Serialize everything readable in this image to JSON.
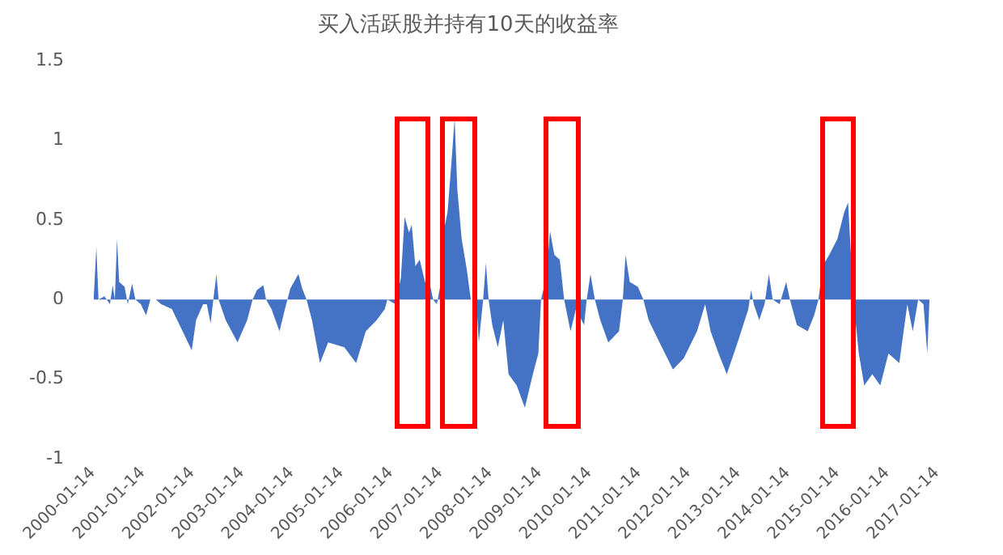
{
  "chart_data": {
    "type": "area",
    "title": "买入活跃股并持有10天的收益率",
    "x": [
      "2000-01-19",
      "2000-02-08",
      "2000-02-24",
      "2000-04-08",
      "2000-05-18",
      "2000-06-07",
      "2000-06-23",
      "2000-07-09",
      "2000-07-25",
      "2000-09-03",
      "2000-09-26",
      "2000-10-28",
      "2000-11-21",
      "2000-12-31",
      "2001-02-08",
      "2001-03-12",
      "2001-04-21",
      "2001-05-30",
      "2001-08-17",
      "2001-11-04",
      "2002-01-10",
      "2002-02-11",
      "2002-04-04",
      "2002-05-01",
      "2002-05-29",
      "2002-06-18",
      "2002-07-11",
      "2002-07-27",
      "2002-09-17",
      "2002-12-13",
      "2003-02-22",
      "2003-04-03",
      "2003-05-05",
      "2003-06-21",
      "2003-07-11",
      "2003-08-20",
      "2003-10-18",
      "2003-11-27",
      "2004-01-06",
      "2004-03-05",
      "2004-04-02",
      "2004-05-04",
      "2004-06-13",
      "2004-08-11",
      "2004-10-10",
      "2005-02-06",
      "2005-05-04",
      "2005-07-14",
      "2005-10-02",
      "2005-12-01",
      "2005-12-20",
      "2006-02-18",
      "2006-03-30",
      "2006-04-26",
      "2006-05-28",
      "2006-06-17",
      "2006-07-14",
      "2006-08-15",
      "2006-09-23",
      "2006-11-02",
      "2006-11-22",
      "2006-12-19",
      "2007-01-12",
      "2007-01-28",
      "2007-03-08",
      "2007-04-09",
      "2007-04-29",
      "2007-05-19",
      "2007-06-20",
      "2007-07-29",
      "2007-08-26",
      "2007-10-05",
      "2007-10-24",
      "2007-11-25",
      "2007-12-15",
      "2008-01-04",
      "2008-01-31",
      "2008-03-12",
      "2008-04-21",
      "2008-05-30",
      "2008-07-29",
      "2008-09-27",
      "2008-11-25",
      "2009-01-04",
      "2009-01-24",
      "2009-03-04",
      "2009-03-31",
      "2009-05-02",
      "2009-06-11",
      "2009-07-13",
      "2009-08-29",
      "2009-10-08",
      "2009-12-07",
      "2009-12-26",
      "2010-01-23",
      "2010-02-24",
      "2010-04-05",
      "2010-06-03",
      "2010-08-21",
      "2010-09-18",
      "2010-10-08",
      "2010-11-08",
      "2011-01-07",
      "2011-02-16",
      "2011-03-27",
      "2011-06-15",
      "2011-09-22",
      "2011-12-10",
      "2012-03-17",
      "2012-05-16",
      "2012-06-25",
      "2012-08-23",
      "2012-10-22",
      "2013-01-10",
      "2013-03-30",
      "2013-04-19",
      "2013-05-09",
      "2013-06-18",
      "2013-07-27",
      "2013-08-28",
      "2013-09-25",
      "2013-11-15",
      "2014-01-02",
      "2014-01-30",
      "2014-03-22",
      "2014-06-10",
      "2014-07-27",
      "2014-08-28",
      "2014-09-28",
      "2014-11-15",
      "2015-01-14",
      "2015-03-06",
      "2015-04-03",
      "2015-05-12",
      "2015-06-21",
      "2015-07-31",
      "2015-09-28",
      "2015-11-26",
      "2016-01-25",
      "2016-04-14",
      "2016-06-12",
      "2016-07-22",
      "2016-08-31",
      "2016-10-09",
      "2016-11-06",
      "2016-11-22"
    ],
    "series": [
      {
        "color": "#4472c4",
        "values": [
          0,
          0.33,
          0,
          0.02,
          -0.03,
          0.09,
          0,
          0.38,
          0.11,
          0.08,
          -0.03,
          0.1,
          0,
          -0.03,
          -0.1,
          0,
          0,
          -0.03,
          -0.06,
          -0.2,
          -0.32,
          -0.13,
          -0.03,
          -0.03,
          -0.15,
          0,
          0.16,
          0,
          -0.13,
          -0.27,
          -0.13,
          0,
          0.06,
          0.09,
          0,
          -0.06,
          -0.2,
          -0.06,
          0.07,
          0.16,
          0.07,
          0,
          -0.13,
          -0.4,
          -0.27,
          -0.3,
          -0.4,
          -0.2,
          -0.13,
          -0.06,
          0,
          -0.03,
          0.14,
          0.52,
          0.42,
          0.47,
          0.21,
          0.25,
          0.11,
          0.08,
          0,
          -0.03,
          0.08,
          0.38,
          0.55,
          0.9,
          1.14,
          0.69,
          0.38,
          0.18,
          0,
          0,
          -0.27,
          0,
          0.23,
          0,
          -0.16,
          -0.3,
          -0.13,
          -0.47,
          -0.54,
          -0.68,
          -0.47,
          -0.34,
          0,
          0.14,
          0.43,
          0.28,
          0.25,
          0,
          -0.2,
          -0.06,
          -0.16,
          0,
          0.16,
          0,
          -0.13,
          -0.27,
          -0.2,
          0,
          0.28,
          0.11,
          0.08,
          0,
          -0.13,
          -0.27,
          -0.44,
          -0.37,
          -0.2,
          -0.03,
          -0.2,
          -0.34,
          -0.47,
          -0.27,
          -0.06,
          0.06,
          -0.03,
          -0.13,
          -0.03,
          0.16,
          0,
          -0.03,
          0.11,
          0,
          -0.16,
          -0.2,
          -0.1,
          0,
          0.21,
          0.28,
          0.38,
          0.55,
          0.61,
          0,
          -0.34,
          -0.54,
          -0.47,
          -0.54,
          -0.34,
          -0.4,
          -0.03,
          -0.2,
          0,
          -0.03,
          -0.34,
          0
        ]
      }
    ],
    "xlim": [
      "2000-01-14",
      "2017-01-14"
    ],
    "xticks": [
      "2000-01-14",
      "2001-01-14",
      "2002-01-14",
      "2003-01-14",
      "2004-01-14",
      "2005-01-14",
      "2006-01-14",
      "2007-01-14",
      "2008-01-14",
      "2009-01-14",
      "2010-01-14",
      "2011-01-14",
      "2012-01-14",
      "2013-01-14",
      "2014-01-14",
      "2015-01-14",
      "2016-01-14",
      "2017-01-14"
    ],
    "ylim": [
      -1,
      1.5
    ],
    "yticks": [
      -1,
      -0.5,
      0,
      0.5,
      1,
      1.5
    ],
    "grid": false,
    "legend": false
  }
}
